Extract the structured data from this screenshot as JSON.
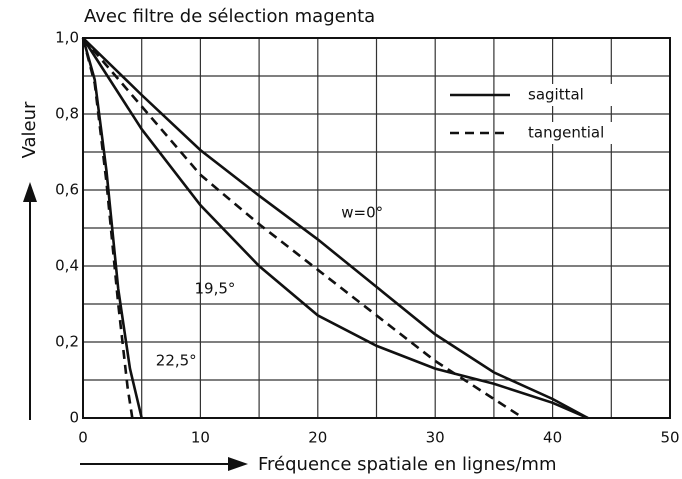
{
  "chart_data": {
    "type": "line",
    "title": "Avec filtre de sélection magenta",
    "xlabel": "Fréquence spatiale en lignes/mm",
    "ylabel": "Valeur",
    "xlim": [
      0,
      50
    ],
    "ylim": [
      0,
      1
    ],
    "xticks": [
      0,
      10,
      20,
      30,
      40,
      50
    ],
    "yticks": [
      0,
      {
        "value": 0.2,
        "label": "0,2"
      },
      {
        "value": 0.4,
        "label": "0,4"
      },
      {
        "value": 0.6,
        "label": "0,6"
      },
      {
        "value": 0.8,
        "label": "0,8"
      },
      {
        "value": 1.0,
        "label": "1,0"
      }
    ],
    "xminor": [
      5,
      15,
      25,
      35,
      45
    ],
    "yminor": [
      0.1,
      0.3,
      0.5,
      0.7,
      0.9
    ],
    "grid": true,
    "color": "#111111",
    "legend": [
      {
        "label": "sagittal",
        "dash": "solid"
      },
      {
        "label": "tangential",
        "dash": "dashed"
      }
    ],
    "series": [
      {
        "dash": "solid",
        "x": [
          0,
          5,
          10,
          15,
          20,
          25,
          30,
          35,
          40,
          43
        ],
        "values": [
          1,
          0.85,
          0.705,
          0.585,
          0.47,
          0.345,
          0.22,
          0.12,
          0.05,
          0
        ]
      },
      {
        "dash": "dashed",
        "x": [
          0,
          5,
          10,
          15,
          20,
          25,
          30,
          35,
          37.5
        ],
        "values": [
          1,
          0.82,
          0.64,
          0.51,
          0.39,
          0.27,
          0.15,
          0.05,
          0
        ]
      },
      {
        "dash": "solid",
        "x": [
          0,
          5,
          10,
          15,
          20,
          25,
          30,
          35,
          40,
          43
        ],
        "values": [
          1,
          0.76,
          0.56,
          0.4,
          0.27,
          0.19,
          0.13,
          0.09,
          0.04,
          0
        ]
      },
      {
        "dash": "solid",
        "x": [
          0,
          1,
          2,
          3,
          4,
          5
        ],
        "values": [
          1,
          0.89,
          0.65,
          0.34,
          0.13,
          0
        ]
      },
      {
        "dash": "dashed",
        "x": [
          0,
          1,
          2,
          3,
          3.8,
          4.2
        ],
        "values": [
          1,
          0.88,
          0.62,
          0.3,
          0.08,
          0
        ]
      }
    ],
    "annotations": [
      {
        "text": "w=0°",
        "x": 22,
        "y": 0.54
      },
      {
        "text": "19,5°",
        "x": 9.5,
        "y": 0.34
      },
      {
        "text": "22,5°",
        "x": 6.2,
        "y": 0.15
      }
    ]
  }
}
